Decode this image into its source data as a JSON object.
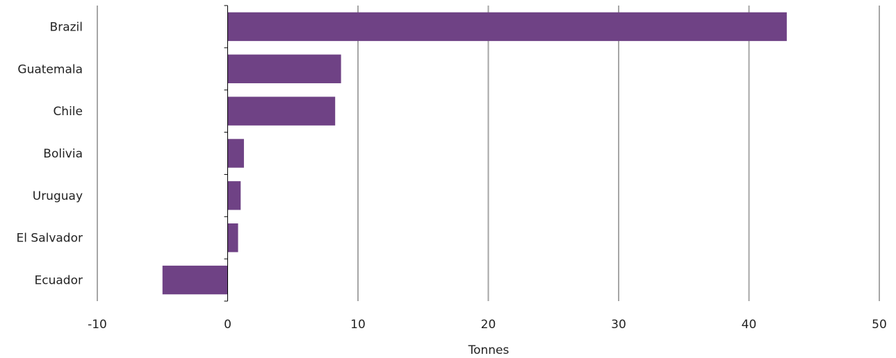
{
  "chart_data": {
    "type": "bar",
    "orientation": "horizontal",
    "categories": [
      "Brazil",
      "Guatemala",
      "Chile",
      "Bolivia",
      "Uruguay",
      "El Salvador",
      "Ecuador"
    ],
    "values": [
      42.9,
      8.7,
      8.25,
      1.25,
      1.0,
      0.8,
      -5.0
    ],
    "xlabel": "Tonnes",
    "xlim": [
      -10,
      50
    ],
    "xticks": [
      -10,
      0,
      10,
      20,
      30,
      40,
      50
    ],
    "grid": true,
    "colors": {
      "bar": "#6f4285",
      "grid": "#a6a6a6",
      "axis": "#000000"
    }
  }
}
